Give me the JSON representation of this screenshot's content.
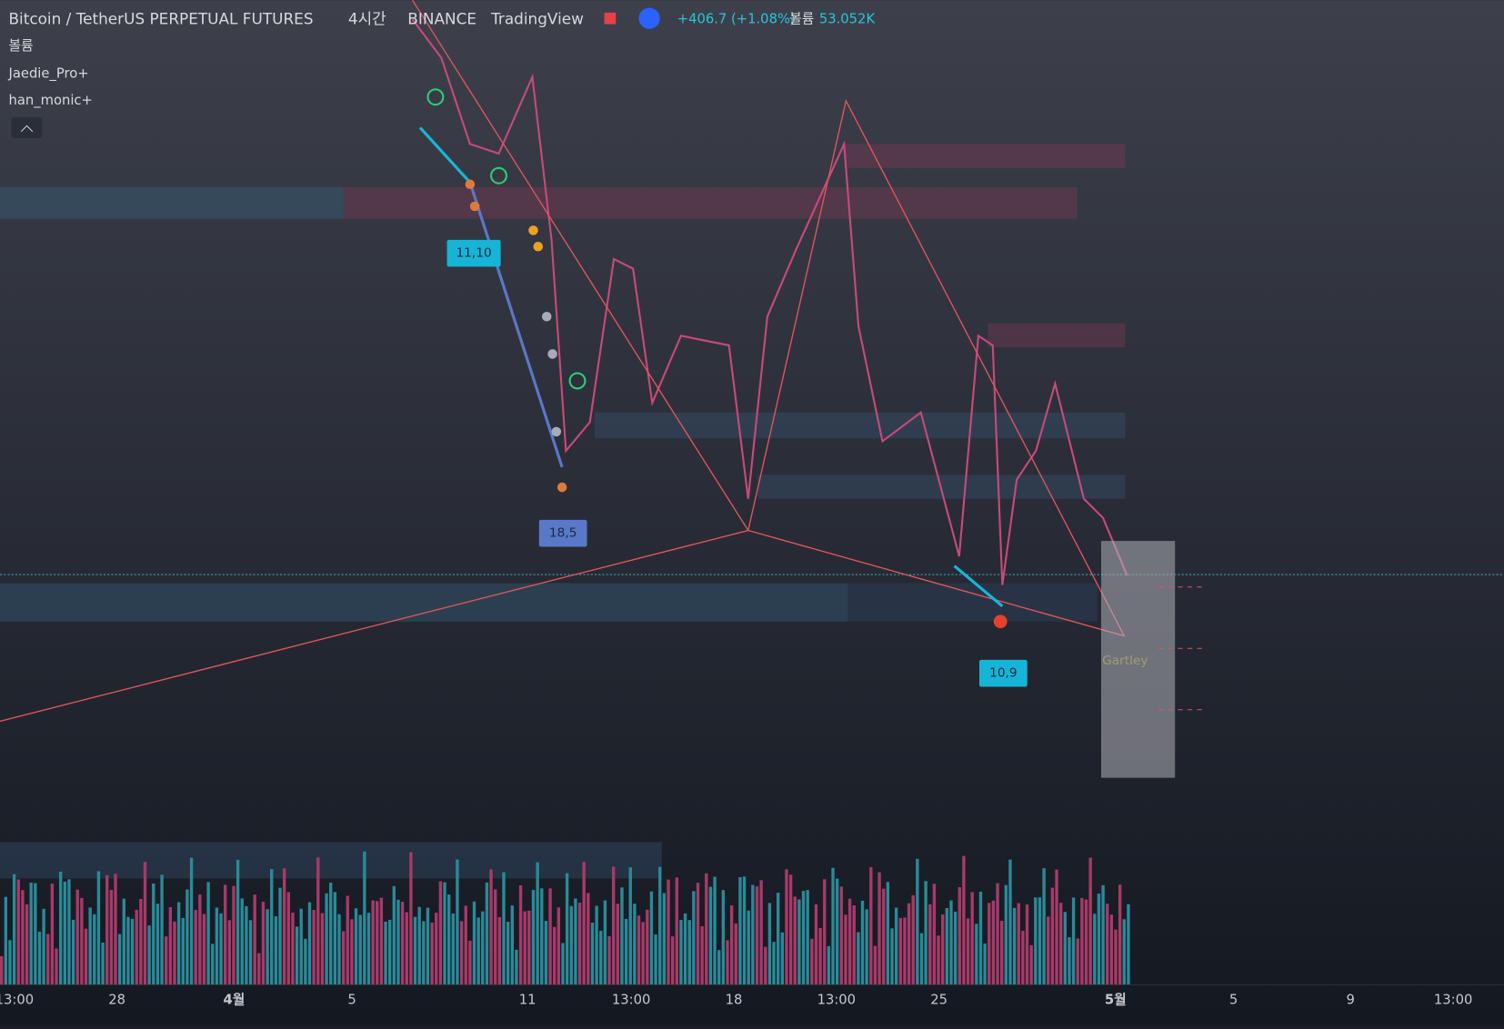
{
  "header": {
    "symbol": "Bitcoin / TetherUS PERPETUAL FUTURES",
    "interval": "4시간",
    "exchange": "BINANCE",
    "source": "TradingView",
    "change": "+406.7 (+1.08%)",
    "volume_label": "볼륨",
    "volume_value": "53.052K"
  },
  "indicators": [
    "볼륨",
    "Jaedie_Pro+",
    "han_monic+"
  ],
  "pattern_labels": [
    "11,10",
    "18,5",
    "10,9"
  ],
  "pattern_name": "Gartley",
  "time_axis": [
    "13:00",
    "28",
    "4월",
    "5",
    "11",
    "13:00",
    "18",
    "13:00",
    "25",
    "5월",
    "5",
    "9",
    "13:00"
  ]
}
